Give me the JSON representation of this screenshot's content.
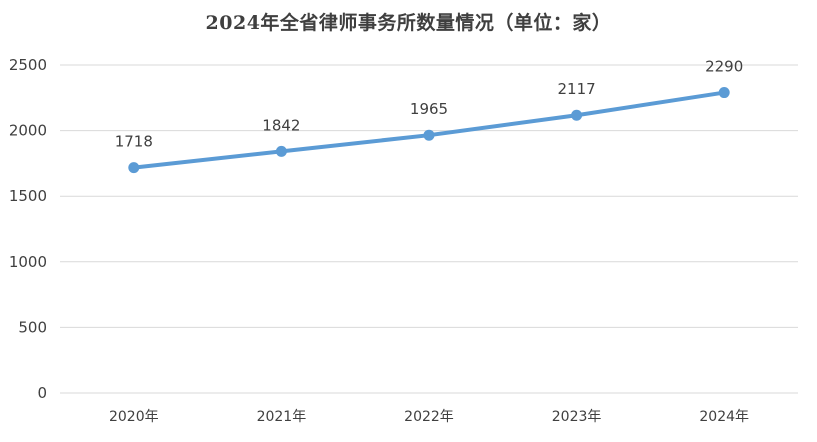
{
  "chart_data": {
    "type": "line",
    "title": "2024年全省律师事务所数量情况（单位：家）",
    "categories": [
      "2020年",
      "2021年",
      "2022年",
      "2023年",
      "2024年"
    ],
    "series": [
      {
        "values": [
          1718,
          1842,
          1965,
          2117,
          2290
        ],
        "color": "#5B9BD5"
      }
    ],
    "ylim": [
      0,
      2500
    ],
    "yticks": [
      0,
      500,
      1000,
      1500,
      2000,
      2500
    ],
    "grid": true,
    "legend": "none",
    "data_labels": [
      "1718",
      "1842",
      "1965",
      "2117",
      "2290"
    ]
  }
}
